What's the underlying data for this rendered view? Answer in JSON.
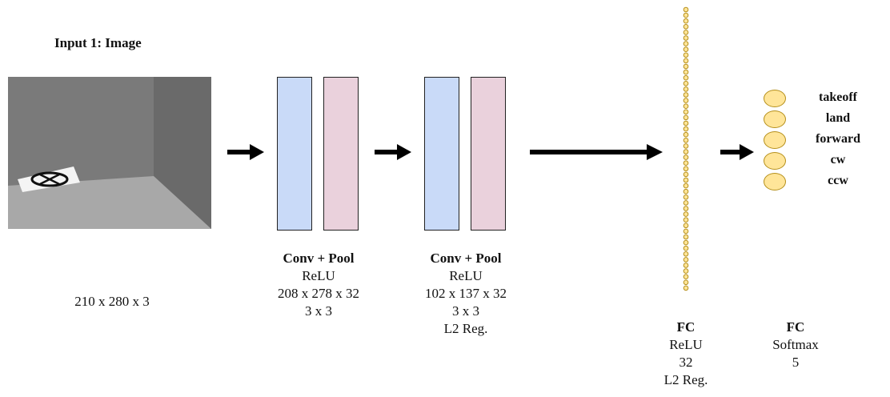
{
  "input": {
    "title": "Input 1: Image",
    "dims": "210 x 280 x 3"
  },
  "conv1": {
    "title": "Conv + Pool",
    "activation": "ReLU",
    "shape": "208 x 278 x 32",
    "kernel": "3 x 3"
  },
  "conv2": {
    "title": "Conv + Pool",
    "activation": "ReLU",
    "shape": "102 x 137 x 32",
    "kernel": "3 x 3",
    "reg": "L2 Reg."
  },
  "fc1": {
    "title": "FC",
    "activation": "ReLU",
    "units": "32",
    "reg": "L2 Reg."
  },
  "fc2": {
    "title": "FC",
    "activation": "Softmax",
    "units": "5"
  },
  "outputs": [
    "takeoff",
    "land",
    "forward",
    "cw",
    "ccw"
  ],
  "colors": {
    "conv_layer": "#c9daf8",
    "pool_layer": "#ead1dc",
    "node_fill": "#ffe599",
    "node_stroke": "#b58f1a"
  }
}
